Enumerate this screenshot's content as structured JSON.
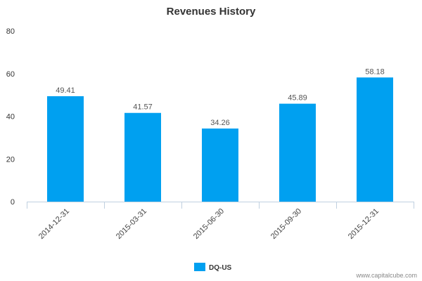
{
  "chart_data": {
    "type": "bar",
    "title": "Revenues History",
    "categories": [
      "2014-12-31",
      "2015-03-31",
      "2015-06-30",
      "2015-09-30",
      "2015-12-31"
    ],
    "series": [
      {
        "name": "DQ-US",
        "values": [
          49.41,
          41.57,
          34.26,
          45.89,
          58.18
        ],
        "labels": [
          "49.41",
          "41.57",
          "34.26",
          "45.89",
          "58.18"
        ],
        "color": "#00a0f0"
      }
    ],
    "ylim": [
      0,
      80
    ],
    "yticks": [
      0,
      20,
      40,
      60,
      80
    ],
    "xlabel": "",
    "ylabel": "",
    "grid": false,
    "legend": "bottom-center"
  },
  "watermark": "www.capitalcube.com"
}
